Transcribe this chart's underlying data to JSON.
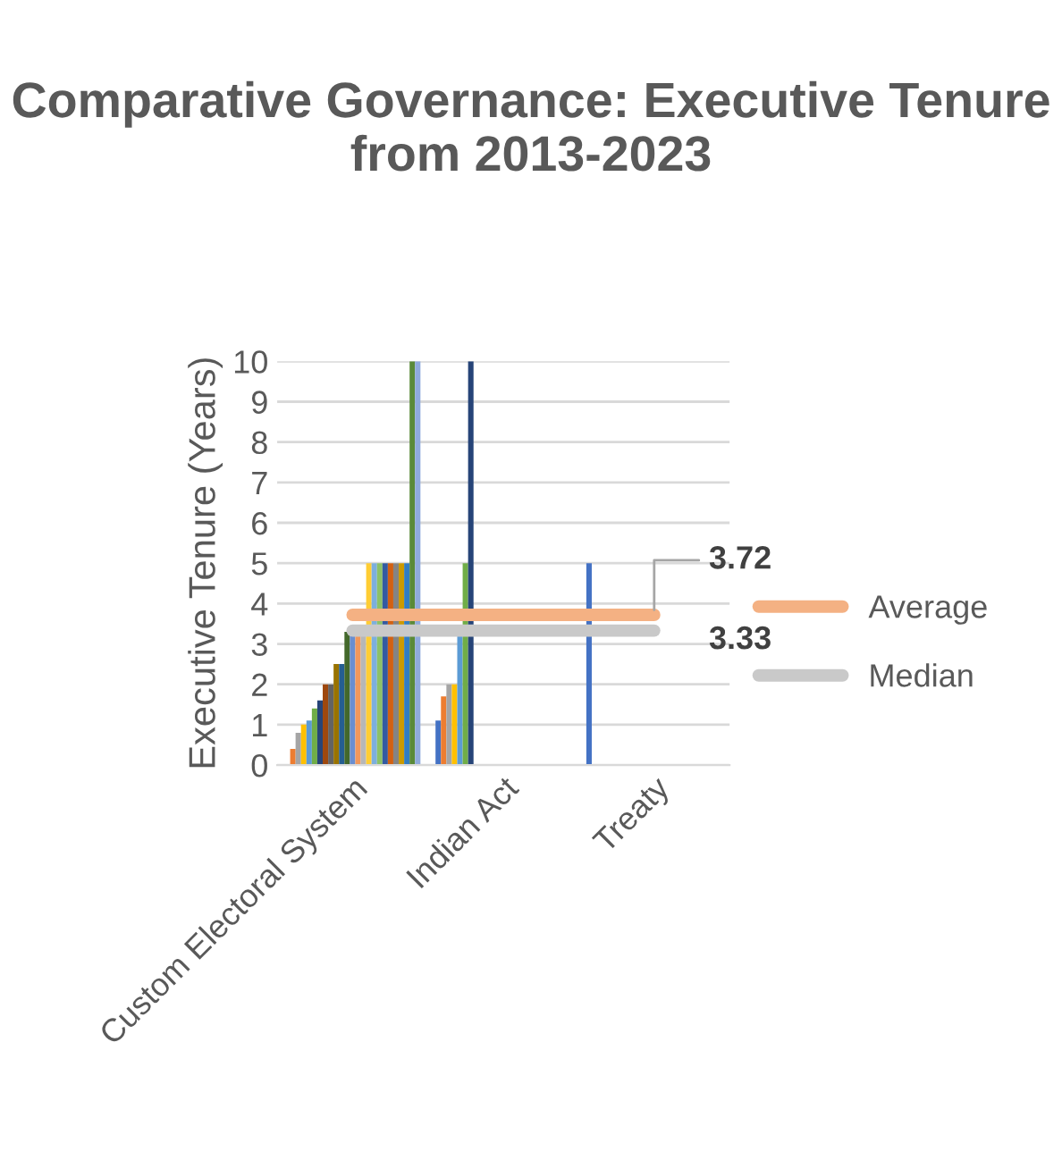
{
  "chart_data": {
    "type": "bar",
    "title": "Comparative Governance: Executive Tenure from 2013-2023",
    "ylabel": "Executive Tenure (Years)",
    "categories": [
      "Custom Electoral System",
      "Indian Act",
      "Treaty"
    ],
    "ylim": [
      0,
      10
    ],
    "yticks": [
      0,
      1,
      2,
      3,
      4,
      5,
      6,
      7,
      8,
      9,
      10
    ],
    "grid": "y",
    "legend": "right",
    "series": [
      {
        "color": "#4472c4",
        "values": [
          null,
          1.1,
          5
        ]
      },
      {
        "color": "#ed7d31",
        "values": [
          0.4,
          1.7,
          null
        ]
      },
      {
        "color": "#a5a5a5",
        "values": [
          0.8,
          2.0,
          null
        ]
      },
      {
        "color": "#ffc000",
        "values": [
          1.0,
          2.0,
          null
        ]
      },
      {
        "color": "#5b9bd5",
        "values": [
          1.1,
          3.3,
          null
        ]
      },
      {
        "color": "#70ad47",
        "values": [
          1.4,
          5,
          null
        ]
      },
      {
        "color": "#264478",
        "values": [
          1.6,
          10,
          null
        ]
      },
      {
        "color": "#9e480e",
        "values": [
          2.0,
          null,
          null
        ]
      },
      {
        "color": "#636363",
        "values": [
          2.0,
          null,
          null
        ]
      },
      {
        "color": "#997300",
        "values": [
          2.5,
          null,
          null
        ]
      },
      {
        "color": "#255e91",
        "values": [
          2.5,
          null,
          null
        ]
      },
      {
        "color": "#43682b",
        "values": [
          3.3,
          null,
          null
        ]
      },
      {
        "color": "#698ed0",
        "values": [
          3.3,
          null,
          null
        ]
      },
      {
        "color": "#f1975a",
        "values": [
          3.3,
          null,
          null
        ]
      },
      {
        "color": "#b7b7b7",
        "values": [
          3.3,
          null,
          null
        ]
      },
      {
        "color": "#ffcd33",
        "values": [
          5,
          null,
          null
        ]
      },
      {
        "color": "#7cafdd",
        "values": [
          5,
          null,
          null
        ]
      },
      {
        "color": "#8cc168",
        "values": [
          5,
          null,
          null
        ]
      },
      {
        "color": "#335aa1",
        "values": [
          5,
          null,
          null
        ]
      },
      {
        "color": "#d26012",
        "values": [
          5,
          null,
          null
        ]
      },
      {
        "color": "#848484",
        "values": [
          5,
          null,
          null
        ]
      },
      {
        "color": "#cc9a00",
        "values": [
          5,
          null,
          null
        ]
      },
      {
        "color": "#327dc2",
        "values": [
          5,
          null,
          null
        ]
      },
      {
        "color": "#5a8a39",
        "values": [
          10,
          null,
          null
        ]
      },
      {
        "color": "#8faadc",
        "values": [
          10,
          null,
          null
        ]
      },
      {
        "type": "line",
        "name": "Average",
        "color": "#f4b183",
        "values": [
          3.72,
          3.72,
          3.72
        ],
        "value_labels": [
          null,
          null,
          "3.72"
        ]
      },
      {
        "type": "line",
        "name": "Median",
        "color": "#c9c9c9",
        "values": [
          3.33,
          3.33,
          3.33
        ],
        "value_labels": [
          null,
          null,
          "3.33"
        ]
      }
    ]
  }
}
